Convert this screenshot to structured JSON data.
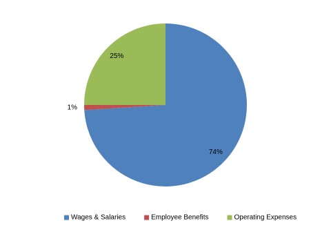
{
  "chart_data": {
    "type": "pie",
    "categories": [
      "Wages & Salaries",
      "Employee Benefits",
      "Operating Expenses"
    ],
    "values": [
      74,
      1,
      25
    ],
    "value_labels": [
      "74%",
      "1%",
      "25%"
    ],
    "colors": [
      "#4f81bd",
      "#c0504d",
      "#9bbb59"
    ],
    "legend": "bottom"
  }
}
